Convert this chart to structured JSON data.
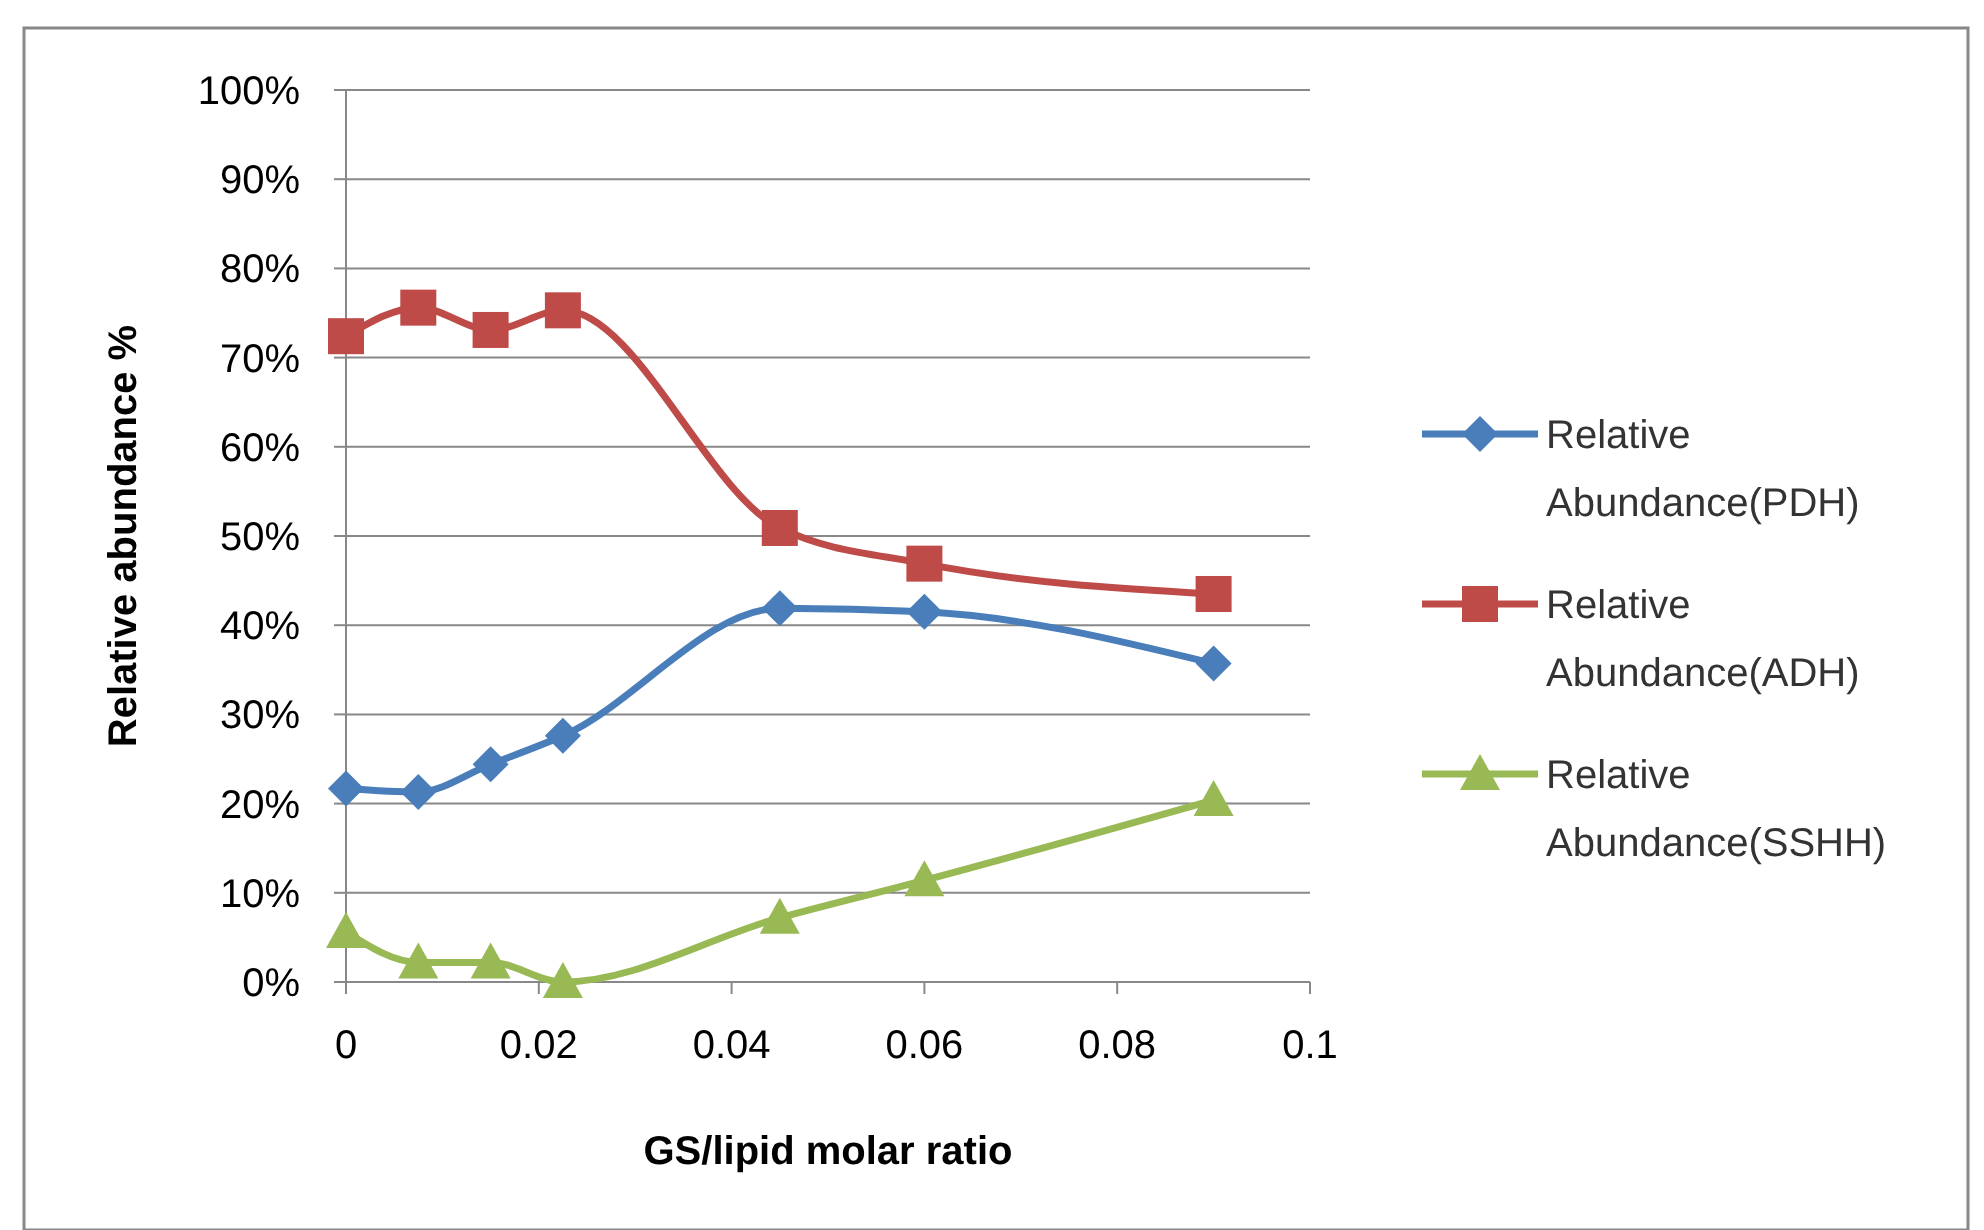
{
  "chart_data": {
    "type": "line",
    "xlabel": "GS/lipid molar ratio",
    "ylabel": "Relative abundance %",
    "xlim": [
      0,
      0.1
    ],
    "xticks": [
      0,
      0.02,
      0.04,
      0.06,
      0.08,
      0.1
    ],
    "ylim": [
      0,
      100
    ],
    "yticks": [
      {
        "value": 0,
        "label": "0%"
      },
      {
        "value": 10,
        "label": "10%"
      },
      {
        "value": 20,
        "label": "20%"
      },
      {
        "value": 30,
        "label": "30%"
      },
      {
        "value": 40,
        "label": "40%"
      },
      {
        "value": 50,
        "label": "50%"
      },
      {
        "value": 60,
        "label": "60%"
      },
      {
        "value": 70,
        "label": "70%"
      },
      {
        "value": 80,
        "label": "80%"
      },
      {
        "value": 90,
        "label": "90%"
      },
      {
        "value": 100,
        "label": "100%"
      }
    ],
    "grid": "y",
    "legend": "right",
    "x": [
      0,
      0.0075,
      0.015,
      0.0225,
      0.045,
      0.06,
      0.09
    ],
    "series": [
      {
        "name": "Relative Abundance(PDH)",
        "color": "#4a7ebb",
        "marker": "diamond",
        "values": [
          21.7,
          21.3,
          24.4,
          27.6,
          41.9,
          41.5,
          35.7
        ]
      },
      {
        "name": "Relative Abundance(ADH)",
        "color": "#be4b48",
        "marker": "square",
        "values": [
          72.4,
          75.6,
          73.1,
          75.3,
          50.9,
          46.9,
          43.5
        ]
      },
      {
        "name": "Relative Abundance(SSHH)",
        "color": "#98b954",
        "marker": "triangle",
        "values": [
          5.6,
          2.2,
          2.2,
          0,
          7.2,
          11.4,
          20.4
        ]
      }
    ]
  }
}
